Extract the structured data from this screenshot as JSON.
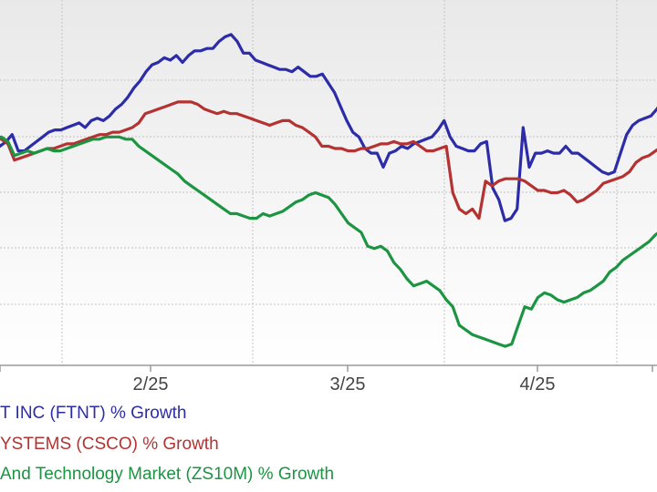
{
  "chart_data": {
    "type": "line",
    "title": "",
    "xlabel": "",
    "ylabel": "",
    "x_ticks": [
      "2/25",
      "3/25",
      "4/25"
    ],
    "legend_position": "bottom-left",
    "grid": true,
    "background_gradient": [
      "#e9e9e9",
      "#ffffff"
    ],
    "series": [
      {
        "name": "T INC (FTNT) % Growth",
        "color": "#2c2ca8",
        "values": [
          -4,
          8,
          9,
          5,
          7,
          10,
          3,
          3,
          5,
          7,
          9,
          11,
          12,
          12,
          13,
          14,
          15,
          13,
          16,
          17,
          16,
          18,
          21,
          23,
          26,
          30,
          33,
          37,
          40,
          41,
          43,
          42,
          44,
          41,
          44,
          46,
          46,
          47,
          47,
          50,
          52,
          53,
          50,
          45,
          45,
          42,
          41,
          40,
          39,
          38,
          38,
          37,
          39,
          37,
          35,
          35,
          36,
          32,
          28,
          22,
          16,
          11,
          9,
          4,
          2,
          2,
          -4,
          2,
          3,
          5,
          4,
          6,
          7,
          8,
          9,
          12,
          16,
          9,
          5,
          4,
          3,
          3,
          6,
          7,
          -13,
          -18,
          -27,
          -26,
          -22,
          13,
          -4,
          2,
          2,
          3,
          2,
          2,
          5,
          2,
          2,
          0,
          -2,
          -4,
          -6,
          -7,
          -6,
          2,
          10,
          14,
          16,
          17,
          18,
          21,
          25,
          28,
          31
        ]
      },
      {
        "name": "YSTEMS (CSCO) % Growth",
        "color": "#b43232",
        "values": [
          0,
          5,
          9,
          8,
          6,
          -1,
          0,
          1,
          2,
          3,
          4,
          4,
          5,
          6,
          6,
          7,
          8,
          9,
          10,
          10,
          11,
          11,
          12,
          13,
          15,
          19,
          20,
          21,
          22,
          23,
          24,
          24,
          24,
          23,
          21,
          20,
          19,
          20,
          19,
          19,
          18,
          17,
          16,
          15,
          14,
          15,
          16,
          16,
          14,
          13,
          11,
          9,
          5,
          5,
          4,
          4,
          3,
          3,
          4,
          4,
          5,
          6,
          6,
          7,
          6,
          6,
          7,
          5,
          3,
          3,
          4,
          5,
          -15,
          -22,
          -24,
          -22,
          -26,
          -10,
          -12,
          -10,
          -9,
          -9,
          -9,
          -10,
          -12,
          -14,
          -14,
          -15,
          -15,
          -14,
          -16,
          -19,
          -18,
          -16,
          -14,
          -11,
          -10,
          -9,
          -8,
          -6,
          -2,
          0,
          1,
          3,
          5,
          6,
          8
        ]
      },
      {
        "name": "And Technology Market (ZS10M) % Growth",
        "color": "#1c9442",
        "values": [
          0,
          5,
          8,
          9,
          7,
          1,
          2,
          3,
          2,
          3,
          4,
          3,
          3,
          4,
          5,
          6,
          7,
          8,
          8,
          9,
          9,
          9,
          8,
          8,
          5,
          3,
          1,
          -1,
          -3,
          -5,
          -7,
          -10,
          -12,
          -14,
          -16,
          -18,
          -20,
          -22,
          -24,
          -24,
          -25,
          -26,
          -26,
          -24,
          -25,
          -24,
          -23,
          -21,
          -19,
          -18,
          -16,
          -15,
          -16,
          -17,
          -20,
          -24,
          -28,
          -30,
          -32,
          -38,
          -39,
          -38,
          -40,
          -45,
          -48,
          -52,
          -55,
          -54,
          -53,
          -55,
          -57,
          -61,
          -64,
          -72,
          -74,
          -76,
          -77,
          -78,
          -79,
          -80,
          -81,
          -80,
          -72,
          -64,
          -65,
          -60,
          -58,
          -59,
          -61,
          -62,
          -61,
          -60,
          -58,
          -57,
          -55,
          -53,
          -49,
          -47,
          -44,
          -42,
          -40,
          -38,
          -36,
          -33,
          -31,
          -29,
          -28
        ]
      }
    ]
  },
  "legend": [
    {
      "label": "T INC (FTNT) % Growth",
      "color": "#2c2ca8"
    },
    {
      "label": "YSTEMS (CSCO) % Growth",
      "color": "#b43232"
    },
    {
      "label": "And Technology Market (ZS10M) % Growth",
      "color": "#1c9442"
    }
  ]
}
